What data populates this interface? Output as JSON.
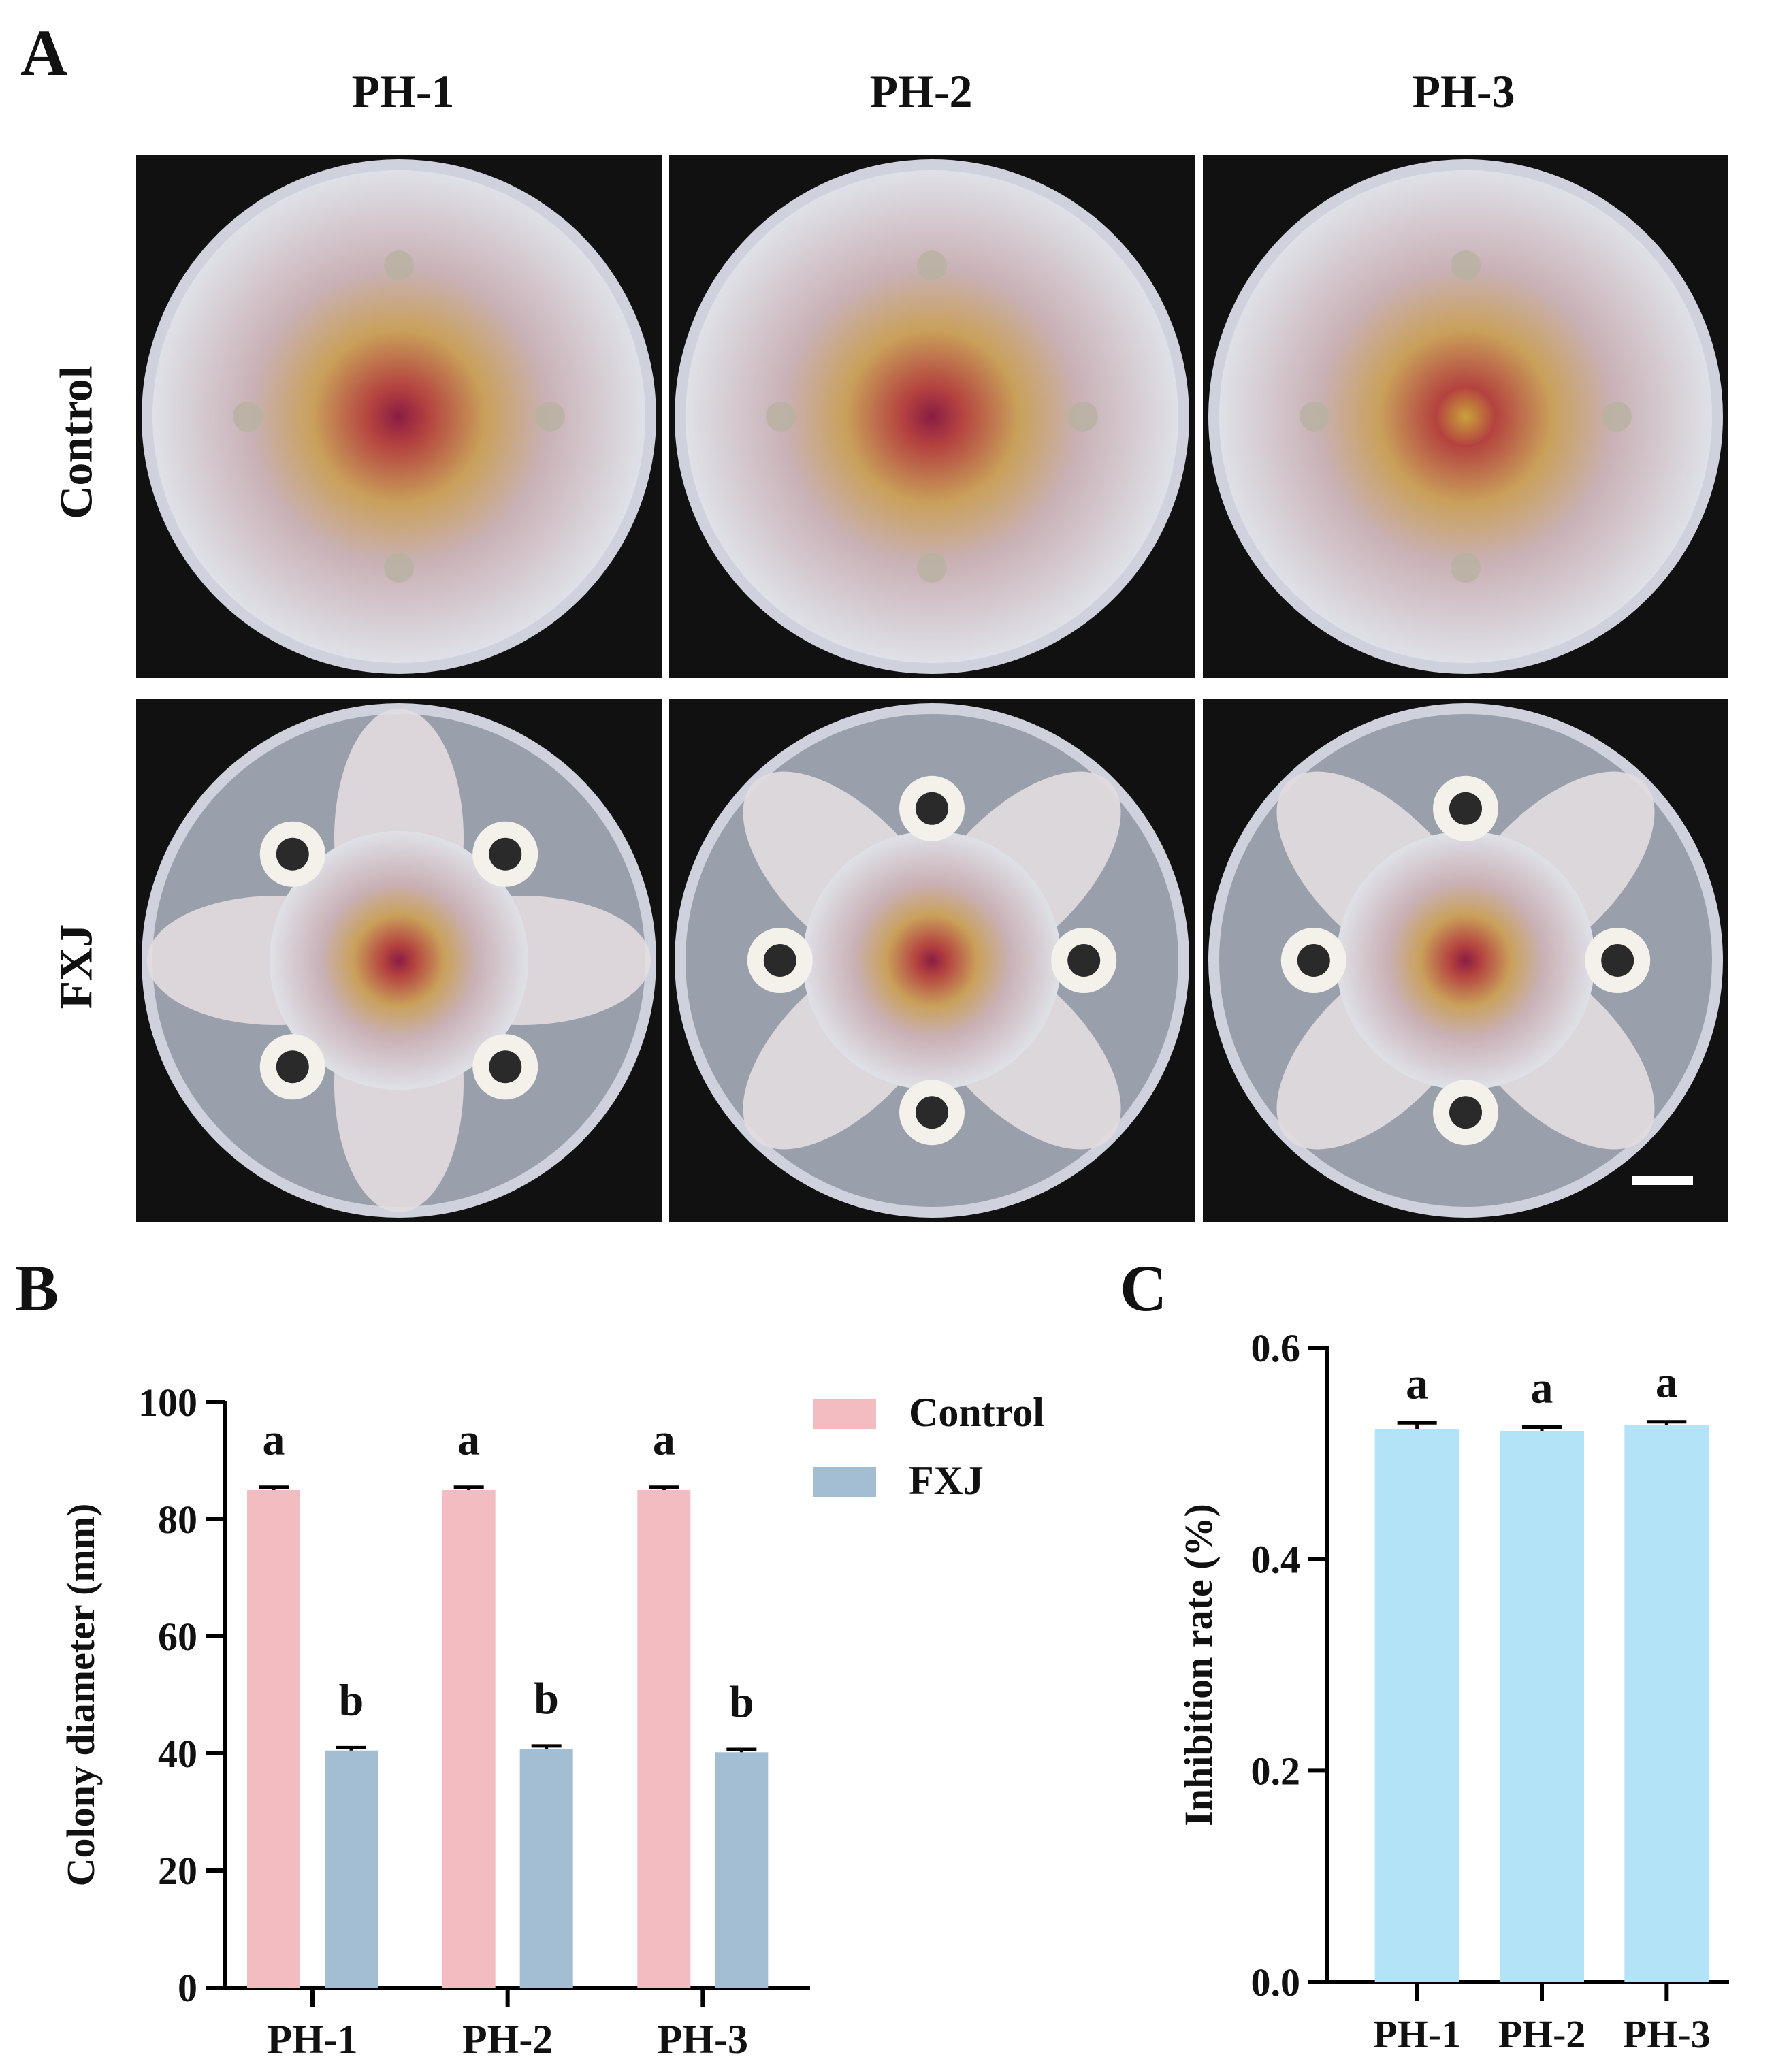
{
  "panels": {
    "a": {
      "letter": "A",
      "columns": [
        "PH-1",
        "PH-2",
        "PH-3"
      ],
      "rows": [
        "Control",
        "FXJ"
      ]
    },
    "b": {
      "letter": "B"
    },
    "c": {
      "letter": "C"
    }
  },
  "colors": {
    "control": "#f3bcc0",
    "fxj": "#a3bed3",
    "inhibition": "#b3e3f7"
  },
  "chart_data": [
    {
      "type": "bar",
      "ylabel": "Colony diameter (mm)",
      "ylim": [
        0,
        100
      ],
      "yticks": [
        "0",
        "20",
        "40",
        "60",
        "80",
        "100"
      ],
      "categories": [
        "PH-1",
        "PH-2",
        "PH-3"
      ],
      "legend": {
        "placement": "top-right"
      },
      "series": [
        {
          "name": "Control",
          "values": [
            85,
            85,
            85
          ],
          "errors": [
            0.5,
            0.5,
            0.5
          ],
          "labels": [
            "a",
            "a",
            "a"
          ]
        },
        {
          "name": "FXJ",
          "values": [
            40.5,
            40.8,
            40.2
          ],
          "errors": [
            0.5,
            0.5,
            0.5
          ],
          "labels": [
            "b",
            "b",
            "b"
          ]
        }
      ]
    },
    {
      "type": "bar",
      "ylabel": "Inhibition rate (%)",
      "ylim": [
        0,
        0.6
      ],
      "yticks": [
        "0.0",
        "0.2",
        "0.4",
        "0.6"
      ],
      "categories": [
        "PH-1",
        "PH-2",
        "PH-3"
      ],
      "values": [
        0.523,
        0.521,
        0.527
      ],
      "errors": [
        0.006,
        0.004,
        0.003
      ],
      "labels": [
        "a",
        "a",
        "a"
      ]
    }
  ]
}
